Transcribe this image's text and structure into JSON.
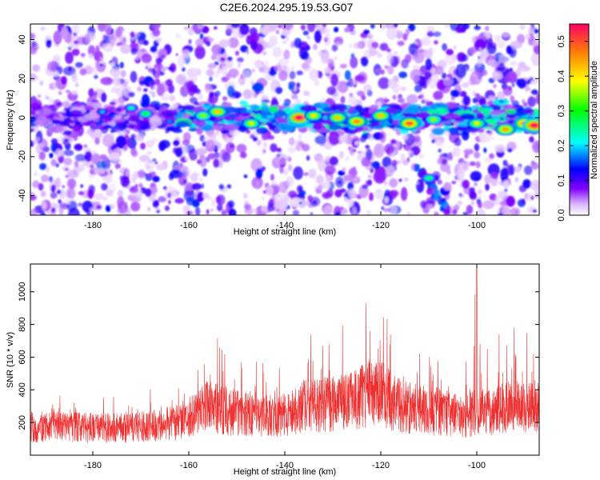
{
  "title": "C2E6.2024.295.19.53.G07",
  "chart_data": [
    {
      "type": "heatmap",
      "xlabel": "Height of straight line (km)",
      "ylabel": "Frequency (Hz)",
      "xlim": [
        -193,
        -87
      ],
      "ylim": [
        -50,
        48
      ],
      "xticks": [
        -180,
        -160,
        -140,
        -120,
        -100
      ],
      "yticks": [
        -40,
        -20,
        0,
        20,
        40
      ],
      "colorbar": {
        "label": "Normalized spectral amplitude",
        "range": [
          0,
          0.55
        ],
        "ticks": [
          0,
          0.1,
          0.2,
          0.3,
          0.4,
          0.5
        ],
        "tick_labels": [
          "0.0",
          "0.1",
          "0.2",
          "0.3",
          "0.4",
          "0.5"
        ],
        "colormap": [
          "#ffffff",
          "#d9b3ff",
          "#8000ff",
          "#0000ff",
          "#00ffff",
          "#00ff00",
          "#ffff00",
          "#ff8000",
          "#ff0066"
        ]
      },
      "band_center_hz": 0,
      "feature_tracks": [
        {
          "from": [
            -112,
            -26
          ],
          "to": [
            -106,
            -48
          ]
        },
        {
          "from": [
            -103,
            48
          ],
          "to": [
            -103,
            46
          ]
        }
      ],
      "bright_spots": [
        {
          "x": -178,
          "y": 3,
          "v": 0.2
        },
        {
          "x": -172,
          "y": 5,
          "v": 0.25
        },
        {
          "x": -169,
          "y": 2,
          "v": 0.3
        },
        {
          "x": -164,
          "y": -2,
          "v": 0.18
        },
        {
          "x": -157,
          "y": 1,
          "v": 0.35
        },
        {
          "x": -154,
          "y": 3,
          "v": 0.42
        },
        {
          "x": -147,
          "y": -3,
          "v": 0.38
        },
        {
          "x": -137,
          "y": 0,
          "v": 0.55
        },
        {
          "x": -134,
          "y": 1,
          "v": 0.4
        },
        {
          "x": -129,
          "y": 0,
          "v": 0.42
        },
        {
          "x": -125,
          "y": -2,
          "v": 0.46
        },
        {
          "x": -120,
          "y": 1,
          "v": 0.42
        },
        {
          "x": -114,
          "y": -3,
          "v": 0.5
        },
        {
          "x": -109,
          "y": -1,
          "v": 0.35
        },
        {
          "x": -100,
          "y": -3,
          "v": 0.38
        },
        {
          "x": -94,
          "y": -6,
          "v": 0.45
        },
        {
          "x": -90,
          "y": -3,
          "v": 0.5
        },
        {
          "x": -88,
          "y": -4,
          "v": 0.55
        },
        {
          "x": -95,
          "y": 25,
          "v": 0.15
        },
        {
          "x": -110,
          "y": -31,
          "v": 0.28
        }
      ]
    },
    {
      "type": "line",
      "xlabel": "Height of straight line (km)",
      "ylabel": "SNR (10 * v/v)",
      "xlim": [
        -193,
        -87
      ],
      "ylim": [
        0,
        1170
      ],
      "xticks": [
        -180,
        -160,
        -140,
        -120,
        -100
      ],
      "yticks": [
        200,
        400,
        600,
        800,
        1000
      ],
      "color": "#f03030",
      "envelope": [
        {
          "x": -193,
          "mean": 175,
          "peak": 420
        },
        {
          "x": -185,
          "mean": 170,
          "peak": 380
        },
        {
          "x": -178,
          "mean": 165,
          "peak": 390
        },
        {
          "x": -170,
          "mean": 175,
          "peak": 400
        },
        {
          "x": -163,
          "mean": 195,
          "peak": 440
        },
        {
          "x": -160,
          "mean": 230,
          "peak": 560
        },
        {
          "x": -156,
          "mean": 300,
          "peak": 840
        },
        {
          "x": -152,
          "mean": 265,
          "peak": 640
        },
        {
          "x": -146,
          "mean": 250,
          "peak": 580
        },
        {
          "x": -141,
          "mean": 235,
          "peak": 560
        },
        {
          "x": -136,
          "mean": 300,
          "peak": 760
        },
        {
          "x": -131,
          "mean": 310,
          "peak": 800
        },
        {
          "x": -127,
          "mean": 325,
          "peak": 800
        },
        {
          "x": -122,
          "mean": 385,
          "peak": 1000
        },
        {
          "x": -119,
          "mean": 360,
          "peak": 920
        },
        {
          "x": -115,
          "mean": 295,
          "peak": 700
        },
        {
          "x": -110,
          "mean": 270,
          "peak": 620
        },
        {
          "x": -106,
          "mean": 255,
          "peak": 600
        },
        {
          "x": -102,
          "mean": 240,
          "peak": 580
        },
        {
          "x": -100,
          "mean": 265,
          "peak": 1160
        },
        {
          "x": -97,
          "mean": 260,
          "peak": 680
        },
        {
          "x": -94,
          "mean": 305,
          "peak": 920
        },
        {
          "x": -90,
          "mean": 290,
          "peak": 870
        },
        {
          "x": -87,
          "mean": 285,
          "peak": 780
        }
      ]
    }
  ]
}
